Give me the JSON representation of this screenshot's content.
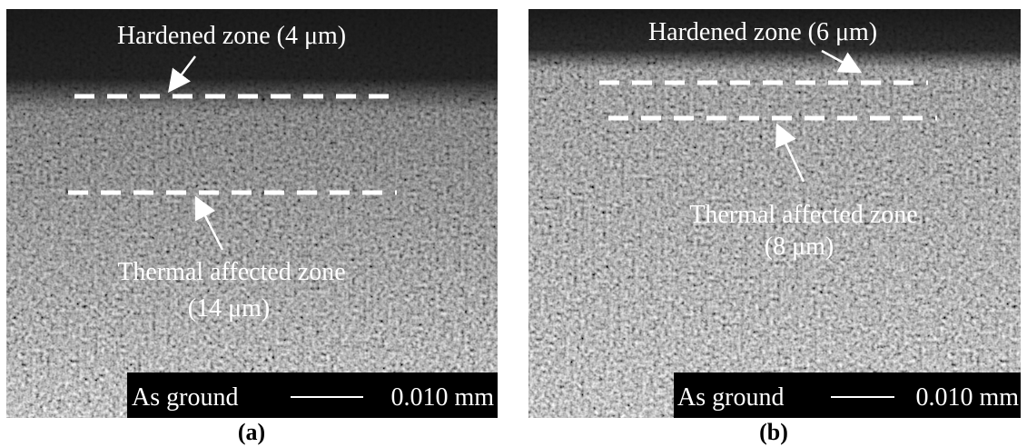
{
  "panels": [
    {
      "hardened_label": "Hardened zone (4 μm)",
      "thermal_label": "Thermal affected zone",
      "thermal_depth": "(14 μm)",
      "scale_text": "As ground",
      "scale_value": "0.010 mm",
      "caption": "(a)"
    },
    {
      "hardened_label": "Hardened zone (6 μm)",
      "thermal_label": "Thermal affected zone",
      "thermal_depth": "(8 μm)",
      "scale_text": "As ground",
      "scale_value": "0.010 mm",
      "caption": "(b)"
    }
  ]
}
